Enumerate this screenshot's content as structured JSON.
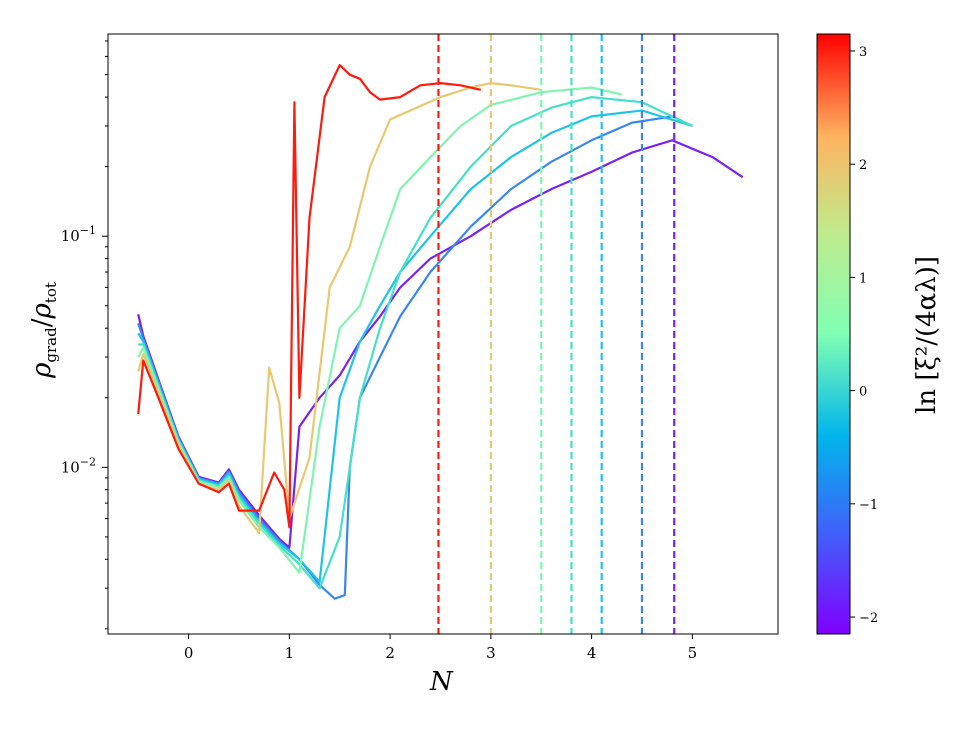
{
  "chart_data": {
    "type": "line",
    "xlabel": "N",
    "ylabel_main": "ρ",
    "ylabel_sub_grad": "grad",
    "ylabel_sub_tot": "tot",
    "yscale": "log",
    "xlim": [
      -0.8,
      5.85
    ],
    "ylim": [
      0.0019,
      0.75
    ],
    "xticks": [
      0,
      1,
      2,
      3,
      4,
      5
    ],
    "xtick_labels": [
      "0",
      "1",
      "2",
      "3",
      "4",
      "5"
    ],
    "ytick_major": [
      0.01,
      0.1
    ],
    "ytick_main": [
      "10",
      "10"
    ],
    "ytick_exps": [
      "−2",
      "−1"
    ],
    "colorbar": {
      "label": "ln [ξ²/(4αλ)]",
      "min": -2.15,
      "max": 3.15,
      "ticks": [
        -2,
        -1,
        0,
        1,
        2,
        3
      ],
      "tick_labels": [
        "−2",
        "−1",
        "0",
        "1",
        "2",
        "3"
      ],
      "colormap": "rainbow"
    },
    "series": [
      {
        "c": 3.0,
        "color": "#ff1a0d",
        "end_N": 2.48,
        "x": [
          -0.5,
          -0.45,
          -0.3,
          -0.1,
          0.1,
          0.3,
          0.4,
          0.5,
          0.7,
          0.85,
          0.95,
          1.0,
          1.05,
          1.1,
          1.2,
          1.35,
          1.5,
          1.6,
          1.7,
          1.8,
          1.9,
          2.1,
          2.3,
          2.5,
          2.7,
          2.9
        ],
        "y": [
          0.017,
          0.029,
          0.02,
          0.012,
          0.0085,
          0.0078,
          0.0085,
          0.0065,
          0.0065,
          0.0095,
          0.008,
          0.0055,
          0.38,
          0.02,
          0.12,
          0.4,
          0.55,
          0.5,
          0.48,
          0.42,
          0.39,
          0.4,
          0.45,
          0.46,
          0.45,
          0.43
        ]
      },
      {
        "c": 1.6,
        "color": "#e8c870",
        "end_N": 3.0,
        "x": [
          -0.5,
          -0.45,
          -0.3,
          -0.1,
          0.1,
          0.3,
          0.4,
          0.5,
          0.7,
          0.8,
          0.9,
          1.0,
          1.2,
          1.4,
          1.6,
          1.8,
          2.0,
          2.2,
          2.5,
          2.8,
          3.0,
          3.2,
          3.5
        ],
        "y": [
          0.026,
          0.031,
          0.021,
          0.0125,
          0.0085,
          0.008,
          0.0088,
          0.0068,
          0.0052,
          0.027,
          0.019,
          0.006,
          0.011,
          0.06,
          0.09,
          0.2,
          0.32,
          0.35,
          0.4,
          0.44,
          0.46,
          0.45,
          0.43
        ]
      },
      {
        "c": 0.6,
        "color": "#7ff5b0",
        "end_N": 3.5,
        "x": [
          -0.5,
          -0.45,
          -0.3,
          -0.1,
          0.1,
          0.3,
          0.4,
          0.5,
          0.7,
          0.9,
          1.1,
          1.3,
          1.5,
          1.7,
          1.9,
          2.1,
          2.4,
          2.7,
          3.0,
          3.5,
          4.0,
          4.3
        ],
        "y": [
          0.03,
          0.033,
          0.022,
          0.0128,
          0.0087,
          0.0082,
          0.009,
          0.0072,
          0.0055,
          0.0045,
          0.0035,
          0.015,
          0.04,
          0.05,
          0.09,
          0.16,
          0.22,
          0.3,
          0.37,
          0.42,
          0.44,
          0.41
        ]
      },
      {
        "c": 0.0,
        "color": "#45e0c8",
        "end_N": 3.8,
        "x": [
          -0.5,
          -0.45,
          -0.3,
          -0.1,
          0.1,
          0.3,
          0.4,
          0.5,
          0.7,
          0.9,
          1.1,
          1.3,
          1.5,
          1.7,
          1.9,
          2.1,
          2.4,
          2.8,
          3.2,
          3.6,
          4.0,
          4.5,
          5.0
        ],
        "y": [
          0.034,
          0.034,
          0.0225,
          0.013,
          0.0088,
          0.0083,
          0.0092,
          0.0074,
          0.0057,
          0.0046,
          0.0038,
          0.003,
          0.005,
          0.02,
          0.04,
          0.07,
          0.12,
          0.2,
          0.3,
          0.36,
          0.4,
          0.38,
          0.3
        ]
      },
      {
        "c": -0.6,
        "color": "#1ec4e8",
        "end_N": 4.1,
        "x": [
          -0.5,
          -0.45,
          -0.3,
          -0.1,
          0.1,
          0.3,
          0.4,
          0.5,
          0.7,
          0.9,
          1.1,
          1.3,
          1.5,
          1.7,
          1.9,
          2.1,
          2.4,
          2.8,
          3.2,
          3.6,
          4.0,
          4.5,
          5.0
        ],
        "y": [
          0.038,
          0.035,
          0.023,
          0.0132,
          0.0089,
          0.0084,
          0.0094,
          0.0076,
          0.0058,
          0.0047,
          0.004,
          0.0032,
          0.02,
          0.035,
          0.05,
          0.07,
          0.1,
          0.16,
          0.22,
          0.28,
          0.33,
          0.35,
          0.3
        ]
      },
      {
        "c": -1.2,
        "color": "#3a86f0",
        "end_N": 4.5,
        "x": [
          -0.5,
          -0.45,
          -0.3,
          -0.1,
          0.1,
          0.3,
          0.4,
          0.5,
          0.7,
          0.9,
          1.1,
          1.3,
          1.45,
          1.55,
          1.6,
          1.7,
          1.9,
          2.1,
          2.4,
          2.8,
          3.2,
          3.6,
          4.0,
          4.4,
          4.8,
          5.0
        ],
        "y": [
          0.042,
          0.036,
          0.0235,
          0.0134,
          0.009,
          0.0085,
          0.0096,
          0.0078,
          0.006,
          0.0048,
          0.004,
          0.0031,
          0.0027,
          0.0028,
          0.01,
          0.02,
          0.03,
          0.045,
          0.07,
          0.11,
          0.16,
          0.21,
          0.26,
          0.31,
          0.33,
          0.3
        ]
      },
      {
        "c": -1.9,
        "color": "#7a22f0",
        "end_N": 4.82,
        "x": [
          -0.5,
          -0.45,
          -0.3,
          -0.1,
          0.1,
          0.3,
          0.4,
          0.5,
          0.7,
          0.9,
          1.0,
          1.1,
          1.3,
          1.5,
          1.7,
          1.9,
          2.1,
          2.4,
          2.8,
          3.2,
          3.6,
          4.0,
          4.4,
          4.8,
          5.2,
          5.5
        ],
        "y": [
          0.046,
          0.037,
          0.024,
          0.0136,
          0.0091,
          0.0086,
          0.0098,
          0.008,
          0.0062,
          0.0049,
          0.0045,
          0.015,
          0.02,
          0.025,
          0.035,
          0.045,
          0.06,
          0.08,
          0.1,
          0.13,
          0.16,
          0.19,
          0.23,
          0.26,
          0.22,
          0.18
        ]
      }
    ]
  }
}
